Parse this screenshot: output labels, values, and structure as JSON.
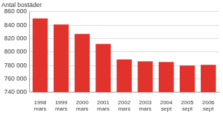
{
  "chart_data": {
    "type": "bar",
    "ylabel": "Antal bostäder",
    "categories": [
      "1998 mars",
      "1999 mars",
      "2000 mars",
      "2001 mars",
      "2002 mars",
      "2003 mars",
      "2004 sept",
      "2005 sept",
      "2006 sept"
    ],
    "values": [
      850000,
      841000,
      827000,
      812000,
      789000,
      786000,
      785000,
      780000,
      781000
    ],
    "color": "#e2322c",
    "ylim": [
      740000,
      860000
    ],
    "yticks": [
      {
        "value": 740000,
        "label": "740 000"
      },
      {
        "value": 760000,
        "label": "760 000"
      },
      {
        "value": 780000,
        "label": "780 000"
      },
      {
        "value": 800000,
        "label": "800 000"
      },
      {
        "value": 820000,
        "label": "820 000"
      },
      {
        "value": 840000,
        "label": "840 000"
      },
      {
        "value": 860000,
        "label": "860 000"
      }
    ],
    "grid": true
  }
}
